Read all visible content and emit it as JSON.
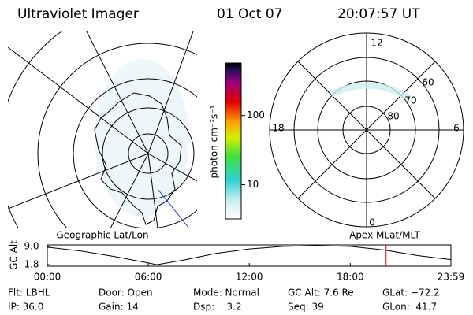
{
  "header": {
    "instrument": "Ultraviolet Imager",
    "date": "01 Oct 07",
    "time": "20:07:57 UT"
  },
  "colorbar": {
    "label": "photon cm⁻²s⁻¹",
    "range": [
      3.2,
      575
    ],
    "log": true,
    "ticks": [
      100,
      10
    ]
  },
  "polar": {
    "label": "Apex MLat/MLT",
    "mlt": [
      "12",
      "18",
      "6",
      "0"
    ],
    "mlat": [
      60,
      70,
      80
    ]
  },
  "geographic": {
    "label": "Geographic Lat/Lon"
  },
  "altitude": {
    "ylabel": "GC Alt",
    "yticks": [
      {
        "value": 9,
        "label": "9.0"
      },
      1.8
    ],
    "ylim": [
      1.2,
      9.6
    ],
    "xticks": [
      {
        "value": 0,
        "label": "00:00"
      },
      {
        "value": 6,
        "label": "06:00"
      },
      {
        "value": 12,
        "label": "12:00"
      },
      {
        "value": 18,
        "label": "18:00"
      },
      {
        "value": 23.98,
        "label": "23:59"
      }
    ],
    "xlim": [
      0,
      23.98
    ],
    "x": [
      0,
      2,
      4,
      6,
      6.5,
      8,
      10,
      12,
      14,
      16,
      18,
      20,
      22,
      23.98
    ],
    "values": [
      8.7,
      7.2,
      5.0,
      2.5,
      1.8,
      3.5,
      6.2,
      8.0,
      9.0,
      9.3,
      9.0,
      7.6,
      5.4,
      3.8
    ],
    "marker": 20.13,
    "marker_color": "#e00000"
  },
  "status": [
    [
      "Flt: LBHL",
      "Door: Open",
      "Mode: Normal",
      "GC Alt: 7.6 Re",
      "GLat: −72.2"
    ],
    [
      "IP: 36.0",
      "Gain: 14",
      "Dsp:    3.2",
      "Seq: 39",
      "GLon:  41.7"
    ]
  ]
}
